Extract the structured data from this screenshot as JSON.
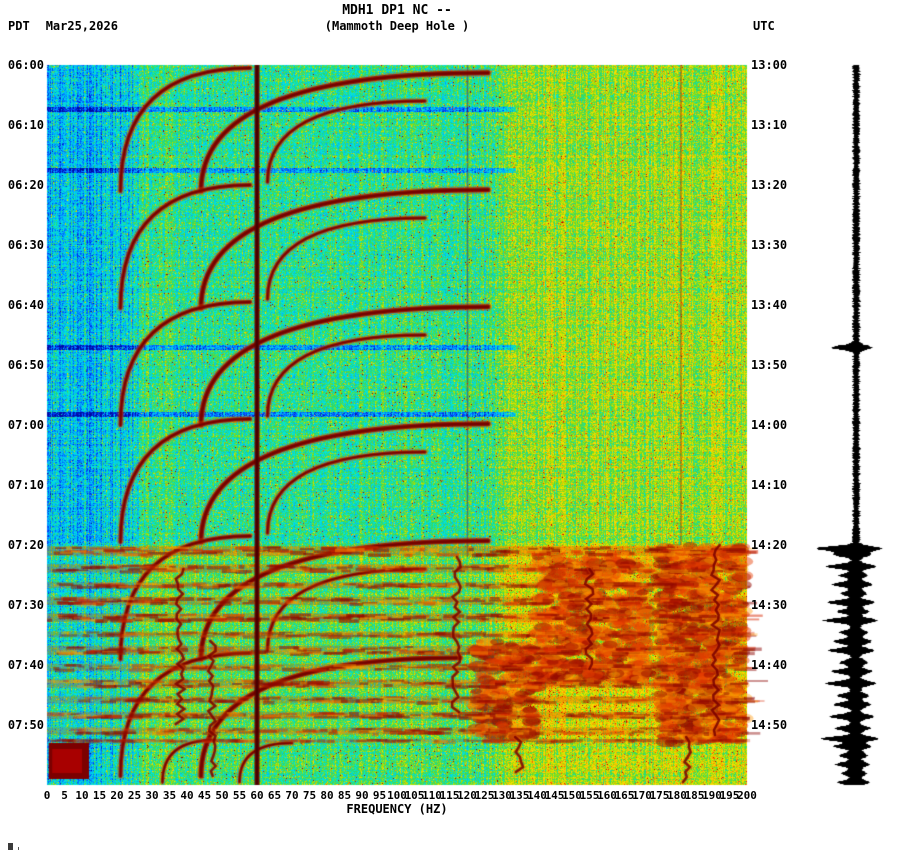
{
  "header": {
    "title": "MDH1 DP1 NC --",
    "subtitle": "(Mammoth Deep Hole )",
    "left_tz": "PDT",
    "date": "Mar25,2026",
    "right_tz": "UTC"
  },
  "axes": {
    "pdt_labels": [
      "06:00",
      "06:10",
      "06:20",
      "06:30",
      "06:40",
      "06:50",
      "07:00",
      "07:10",
      "07:20",
      "07:30",
      "07:40",
      "07:50"
    ],
    "utc_labels": [
      "13:00",
      "13:10",
      "13:20",
      "13:30",
      "13:40",
      "13:50",
      "14:00",
      "14:10",
      "14:20",
      "14:30",
      "14:40",
      "14:50"
    ],
    "freq_ticks": [
      0,
      5,
      10,
      15,
      20,
      25,
      30,
      35,
      40,
      45,
      50,
      55,
      60,
      65,
      70,
      75,
      80,
      85,
      90,
      95,
      100,
      105,
      110,
      115,
      120,
      125,
      130,
      135,
      140,
      145,
      150,
      155,
      160,
      165,
      170,
      175,
      180,
      185,
      190,
      195,
      200
    ],
    "freq_axis_label": "FREQUENCY (HZ)"
  },
  "chart_data": {
    "type": "heatmap",
    "subtype": "seismic-spectrogram",
    "station": "MDH1 DP1 NC --",
    "station_name": "Mammoth Deep Hole",
    "date": "Mar25,2026",
    "time_axis": {
      "start_pdt": "06:00",
      "end_pdt": "08:00",
      "start_utc": "13:00",
      "end_utc": "15:00",
      "tick_interval_min": 10,
      "span_min": 120
    },
    "freq_axis": {
      "min_hz": 0,
      "max_hz": 200,
      "tick_interval_hz": 5
    },
    "palette": [
      [
        0.0,
        "#000090"
      ],
      [
        0.12,
        "#0040ff"
      ],
      [
        0.25,
        "#00a8ff"
      ],
      [
        0.36,
        "#00e8e0"
      ],
      [
        0.48,
        "#30d860"
      ],
      [
        0.58,
        "#a8e000"
      ],
      [
        0.68,
        "#ffe000"
      ],
      [
        0.78,
        "#ff9000"
      ],
      [
        0.87,
        "#ff3000"
      ],
      [
        0.94,
        "#c00000"
      ],
      [
        1.0,
        "#700000"
      ]
    ],
    "features": {
      "mains_line_hz": 60,
      "faint_lines": [
        {
          "f": 120,
          "t0": 0,
          "t1": 82
        },
        {
          "f": 181,
          "t0": 0,
          "t1": 80
        }
      ],
      "pale_lines_min": [
        7.3,
        17.5,
        47.0,
        58.2
      ],
      "glide_arcs": [
        {
          "f0": 21,
          "t0": 21.0,
          "f1": 58,
          "t1": 0.5,
          "w": 4
        },
        {
          "f0": 44,
          "t0": 21.0,
          "f1": 126,
          "t1": 1.3,
          "w": 5
        },
        {
          "f0": 63,
          "t0": 19.5,
          "f1": 108,
          "t1": 6.0,
          "w": 3.5
        },
        {
          "f0": 21,
          "t0": 40.5,
          "f1": 58,
          "t1": 20.0,
          "w": 4
        },
        {
          "f0": 44,
          "t0": 40.5,
          "f1": 126,
          "t1": 20.8,
          "w": 5
        },
        {
          "f0": 63,
          "t0": 39.0,
          "f1": 108,
          "t1": 25.5,
          "w": 3.5
        },
        {
          "f0": 21,
          "t0": 60.0,
          "f1": 58,
          "t1": 39.5,
          "w": 4
        },
        {
          "f0": 44,
          "t0": 60.0,
          "f1": 126,
          "t1": 40.3,
          "w": 5
        },
        {
          "f0": 63,
          "t0": 58.5,
          "f1": 108,
          "t1": 45.0,
          "w": 3.5
        },
        {
          "f0": 21,
          "t0": 79.5,
          "f1": 58,
          "t1": 59.0,
          "w": 4
        },
        {
          "f0": 44,
          "t0": 79.5,
          "f1": 126,
          "t1": 59.8,
          "w": 5
        },
        {
          "f0": 63,
          "t0": 78.0,
          "f1": 108,
          "t1": 64.5,
          "w": 3.5
        },
        {
          "f0": 21,
          "t0": 99.0,
          "f1": 58,
          "t1": 78.5,
          "w": 4
        },
        {
          "f0": 44,
          "t0": 99.0,
          "f1": 126,
          "t1": 79.3,
          "w": 5
        },
        {
          "f0": 63,
          "t0": 97.5,
          "f1": 108,
          "t1": 84.0,
          "w": 3.5
        },
        {
          "f0": 21,
          "t0": 118.5,
          "f1": 58,
          "t1": 98.0,
          "w": 4
        },
        {
          "f0": 44,
          "t0": 118.5,
          "f1": 118,
          "t1": 98.8,
          "w": 5
        },
        {
          "f0": 33,
          "t0": 119.5,
          "f1": 48,
          "t1": 112.5,
          "w": 3
        },
        {
          "f0": 55,
          "t0": 119.5,
          "f1": 70,
          "t1": 113.0,
          "w": 3
        }
      ],
      "tremor_bands": [
        {
          "t0": 80.2,
          "t1": 81.8,
          "s": 1.0
        },
        {
          "t0": 83.2,
          "t1": 84.6,
          "s": 0.9
        },
        {
          "t0": 86.2,
          "t1": 87.2,
          "s": 0.8
        },
        {
          "t0": 88.6,
          "t1": 90.0,
          "s": 0.9
        },
        {
          "t0": 91.4,
          "t1": 92.8,
          "s": 1.0
        },
        {
          "t0": 94.4,
          "t1": 95.4,
          "s": 0.7
        },
        {
          "t0": 96.8,
          "t1": 98.3,
          "s": 0.9
        },
        {
          "t0": 99.8,
          "t1": 101.0,
          "s": 0.8
        },
        {
          "t0": 102.4,
          "t1": 103.8,
          "s": 0.9
        },
        {
          "t0": 105.2,
          "t1": 106.4,
          "s": 0.8
        },
        {
          "t0": 107.8,
          "t1": 109.0,
          "s": 0.9
        },
        {
          "t0": 110.4,
          "t1": 111.6,
          "s": 0.8
        },
        {
          "t0": 112.3,
          "t1": 112.9,
          "s": 0.6
        }
      ],
      "streaks": [
        {
          "f": 38,
          "t0": 84,
          "t1": 110
        },
        {
          "f": 47,
          "t0": 96,
          "t1": 119
        },
        {
          "f": 117,
          "t0": 82,
          "t1": 108
        },
        {
          "f": 155,
          "t0": 84,
          "t1": 101
        },
        {
          "f": 191,
          "t0": 80,
          "t1": 112
        },
        {
          "f": 135,
          "t0": 112,
          "t1": 118
        },
        {
          "f": 183,
          "t0": 112,
          "t1": 119.5
        }
      ],
      "hot_blobs": [
        {
          "f0": 140,
          "f1": 172,
          "t0": 82,
          "t1": 103
        },
        {
          "f0": 175,
          "f1": 199,
          "t0": 80,
          "t1": 113
        },
        {
          "f0": 122,
          "f1": 140,
          "t0": 96,
          "t1": 112
        }
      ],
      "low_freq_blob": {
        "f0": 0.5,
        "f1": 12,
        "t0": 113,
        "t1": 119
      }
    },
    "seismogram": {
      "base_amp": 2.8,
      "base_amp_active": 4.6,
      "spikes": [
        {
          "t": 47,
          "a": 22
        },
        {
          "t": 80.5,
          "a": 36
        },
        {
          "t": 81.5,
          "a": 18
        },
        {
          "t": 83.5,
          "a": 26
        },
        {
          "t": 85,
          "a": 12
        },
        {
          "t": 86.5,
          "a": 20
        },
        {
          "t": 88,
          "a": 10
        },
        {
          "t": 89.5,
          "a": 24
        },
        {
          "t": 91,
          "a": 14
        },
        {
          "t": 92.5,
          "a": 28
        },
        {
          "t": 94.5,
          "a": 12
        },
        {
          "t": 96,
          "a": 18
        },
        {
          "t": 97.5,
          "a": 24
        },
        {
          "t": 99.5,
          "a": 12
        },
        {
          "t": 101,
          "a": 20
        },
        {
          "t": 103,
          "a": 26
        },
        {
          "t": 105,
          "a": 14
        },
        {
          "t": 106.5,
          "a": 18
        },
        {
          "t": 108.5,
          "a": 22
        },
        {
          "t": 110.5,
          "a": 16
        },
        {
          "t": 112.2,
          "a": 30
        },
        {
          "t": 113.5,
          "a": 18
        },
        {
          "t": 115,
          "a": 12
        },
        {
          "t": 116.5,
          "a": 16
        },
        {
          "t": 118,
          "a": 10
        },
        {
          "t": 119.5,
          "a": 14
        }
      ]
    }
  }
}
